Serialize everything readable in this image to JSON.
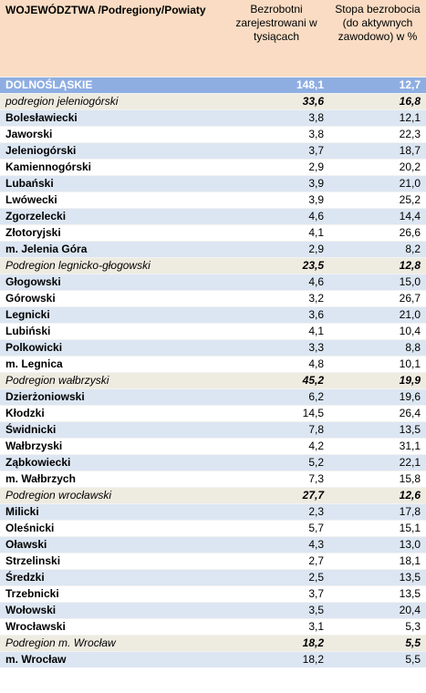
{
  "header": {
    "col1": "WOJEWÓDZTWA /Podregiony/Powiaty",
    "col2": "Bezrobotni zarejestrowani w tysiącach",
    "col3": "Stopa bezrobocia (do aktywnych zawodowo) w %"
  },
  "rows": [
    {
      "type": "voiv",
      "name": "DOLNOŚLĄSKIE",
      "bez": "148,1",
      "stopa": "12,7"
    },
    {
      "type": "sub",
      "name": "podregion   jeleniogórski",
      "bez": "33,6",
      "stopa": "16,8"
    },
    {
      "type": "pow",
      "name": "Bolesławiecki",
      "bez": "3,8",
      "stopa": "12,1"
    },
    {
      "type": "pow",
      "name": "Jaworski",
      "bez": "3,8",
      "stopa": "22,3"
    },
    {
      "type": "pow",
      "name": "Jeleniogórski",
      "bez": "3,7",
      "stopa": "18,7"
    },
    {
      "type": "pow",
      "name": "Kamiennogórski",
      "bez": "2,9",
      "stopa": "20,2"
    },
    {
      "type": "pow",
      "name": "Lubański",
      "bez": "3,9",
      "stopa": "21,0"
    },
    {
      "type": "pow",
      "name": "Lwówecki",
      "bez": "3,9",
      "stopa": "25,2"
    },
    {
      "type": "pow",
      "name": "Zgorzelecki",
      "bez": "4,6",
      "stopa": "14,4"
    },
    {
      "type": "pow",
      "name": "Złotoryjski",
      "bez": "4,1",
      "stopa": "26,6"
    },
    {
      "type": "pow",
      "name": "m. Jelenia Góra",
      "bez": "2,9",
      "stopa": "8,2"
    },
    {
      "type": "sub",
      "name": "Podregion legnicko-głogowski",
      "bez": "23,5",
      "stopa": "12,8"
    },
    {
      "type": "pow",
      "name": "Głogowski",
      "bez": "4,6",
      "stopa": "15,0"
    },
    {
      "type": "pow",
      "name": "Górowski",
      "bez": "3,2",
      "stopa": "26,7"
    },
    {
      "type": "pow",
      "name": "Legnicki",
      "bez": "3,6",
      "stopa": "21,0"
    },
    {
      "type": "pow",
      "name": "Lubiński",
      "bez": "4,1",
      "stopa": "10,4"
    },
    {
      "type": "pow",
      "name": "Polkowicki",
      "bez": "3,3",
      "stopa": "8,8"
    },
    {
      "type": "pow",
      "name": "m. Legnica",
      "bez": "4,8",
      "stopa": "10,1"
    },
    {
      "type": "sub",
      "name": "Podregion wałbrzyski",
      "bez": "45,2",
      "stopa": "19,9"
    },
    {
      "type": "pow",
      "name": "Dzierżoniowski",
      "bez": "6,2",
      "stopa": "19,6"
    },
    {
      "type": "pow",
      "name": "Kłodzki",
      "bez": "14,5",
      "stopa": "26,4"
    },
    {
      "type": "pow",
      "name": "Świdnicki",
      "bez": "7,8",
      "stopa": "13,5"
    },
    {
      "type": "pow",
      "name": "Wałbrzyski",
      "bez": "4,2",
      "stopa": "31,1"
    },
    {
      "type": "pow",
      "name": "Ząbkowiecki",
      "bez": "5,2",
      "stopa": "22,1"
    },
    {
      "type": "pow",
      "name": "m. Wałbrzych",
      "bez": "7,3",
      "stopa": "15,8"
    },
    {
      "type": "sub",
      "name": "Podregion wrocławski",
      "bez": "27,7",
      "stopa": "12,6"
    },
    {
      "type": "pow",
      "name": "Milicki",
      "bez": "2,3",
      "stopa": "17,8"
    },
    {
      "type": "pow",
      "name": "Oleśnicki",
      "bez": "5,7",
      "stopa": "15,1"
    },
    {
      "type": "pow",
      "name": "Oławski",
      "bez": "4,3",
      "stopa": "13,0"
    },
    {
      "type": "pow",
      "name": "Strzelinski",
      "bez": "2,7",
      "stopa": "18,1"
    },
    {
      "type": "pow",
      "name": "Średzki",
      "bez": "2,5",
      "stopa": "13,5"
    },
    {
      "type": "pow",
      "name": "Trzebnicki",
      "bez": "3,7",
      "stopa": "13,5"
    },
    {
      "type": "pow",
      "name": "Wołowski",
      "bez": "3,5",
      "stopa": "20,4"
    },
    {
      "type": "pow",
      "name": "Wrocławski",
      "bez": "3,1",
      "stopa": "5,3"
    },
    {
      "type": "sub",
      "name": "Podregion m. Wrocław",
      "bez": "18,2",
      "stopa": "5,5"
    },
    {
      "type": "pow",
      "name": "m. Wrocław",
      "bez": "18,2",
      "stopa": "5,5"
    }
  ]
}
